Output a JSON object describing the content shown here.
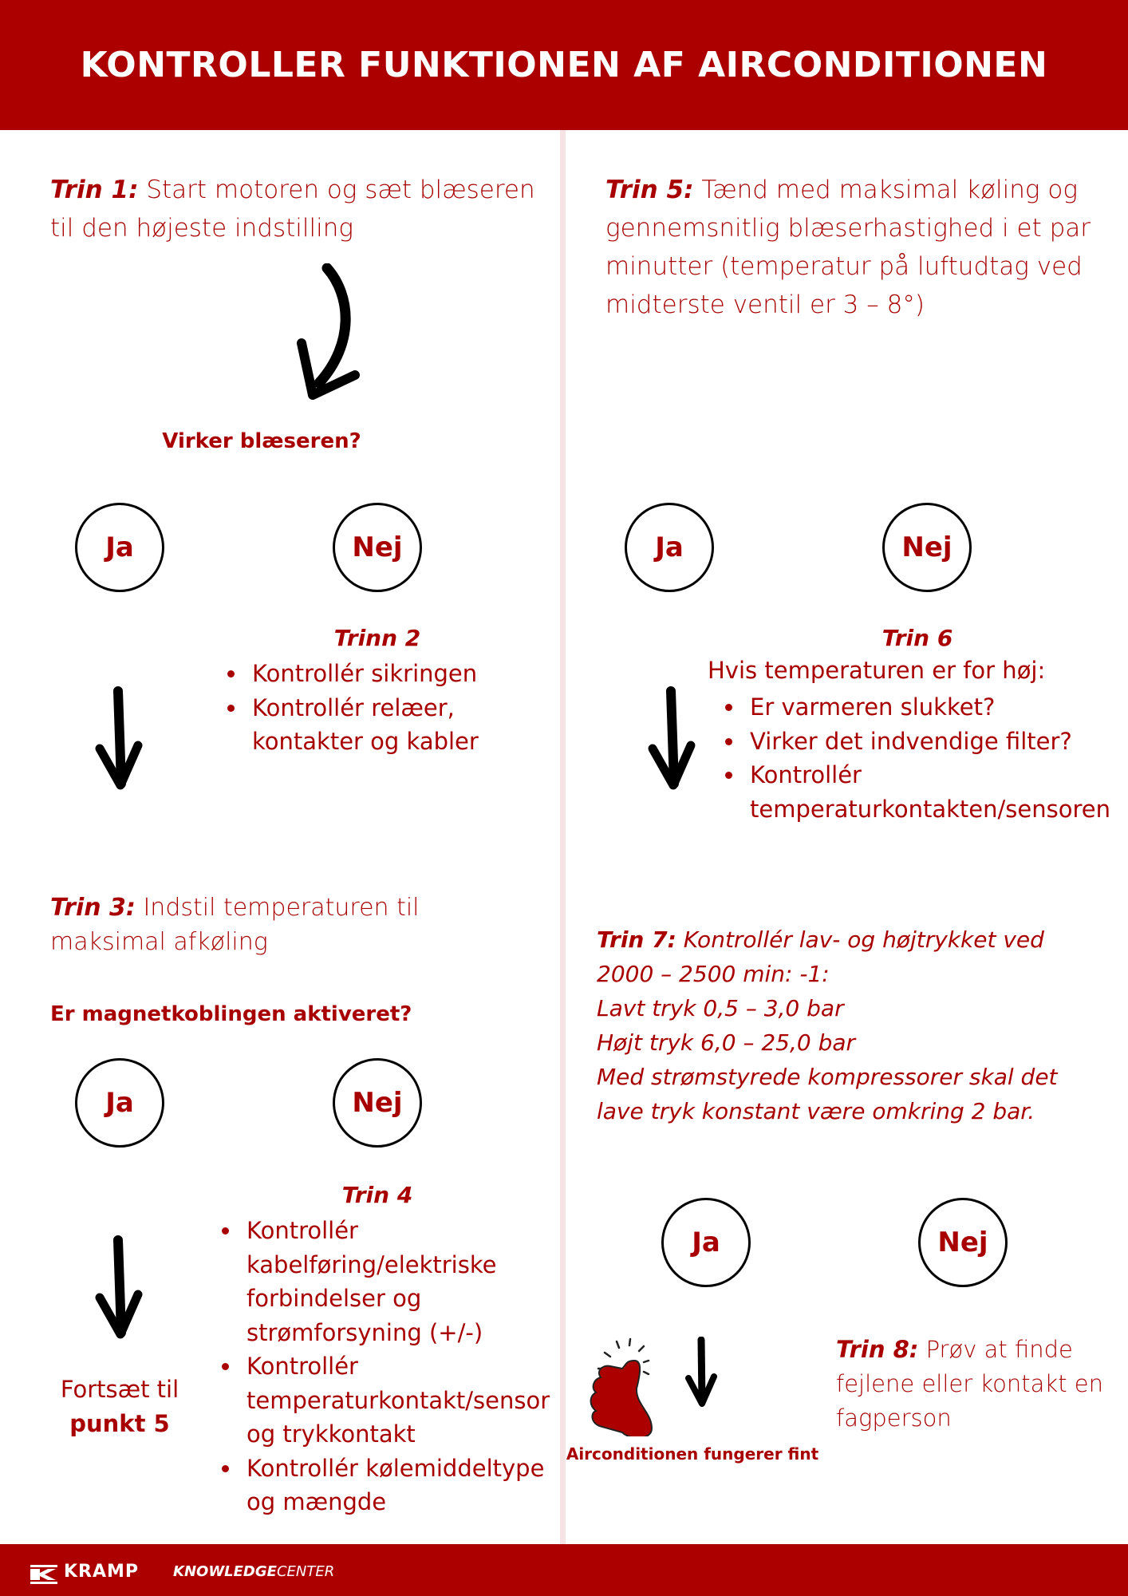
{
  "header": {
    "title": "KONTROLLER FUNKTIONEN AF AIRCONDITIONEN"
  },
  "colors": {
    "brand": "#ac0000",
    "text": "#a80000",
    "divider": "#f6e3e3"
  },
  "left": {
    "step1": {
      "label": "Trin 1:",
      "text": " Start motoren og sæt blæseren til den højeste indstilling"
    },
    "q1": "Virker blæseren?",
    "yes1": "Ja",
    "no1": "Nej",
    "step2": {
      "title": "Trinn 2",
      "items": [
        "Kontrollér sikringen",
        "Kontrollér relæer, kontakter og kabler"
      ]
    },
    "step3": {
      "label": "Trin 3:",
      "text": " Indstil temperaturen til maksimal afkøling"
    },
    "q2": "Er magnetkoblingen aktiveret?",
    "yes2": "Ja",
    "no2": "Nej",
    "step4": {
      "title": "Trin 4",
      "items": [
        "Kontrollér kabelføring/elektriske forbindelser og strømforsyning (+/-)",
        "Kontrollér temperaturkontakt/sensor og trykkontakt",
        "Kontrollér kølemiddeltype og mængde"
      ]
    },
    "continue": {
      "text": "Fortsæt til",
      "bold": "punkt 5"
    }
  },
  "right": {
    "step5": {
      "label": "Trin 5:",
      "text": " Tænd med maksimal køling og gennemsnitlig blæserhastighed i et par minutter (temperatur på luftudtag ved midterste ventil er 3 – 8°)"
    },
    "yes1": "Ja",
    "no1": "Nej",
    "step6": {
      "title": "Trin 6",
      "intro": "Hvis temperaturen er for høj:",
      "items": [
        "Er varmeren slukket?",
        "Virker det indvendige filter?",
        "Kontrollér temperaturkontakten/sensoren"
      ]
    },
    "step7": {
      "label": "Trin 7:",
      "lines": [
        "  Kontrollér lav- og højtrykket ved 2000 – 2500 min: -1:",
        "Lavt tryk 0,5 – 3,0 bar",
        "Højt tryk 6,0 – 25,0 bar",
        "Med strømstyrede kompressorer skal det lave tryk konstant være omkring 2 bar."
      ]
    },
    "yes2": "Ja",
    "no2": "Nej",
    "ok": "Airconditionen fungerer fint",
    "step8": {
      "label": "Trin 8:",
      "text": " Prøv at finde fejlene eller kontakt en fagperson"
    }
  },
  "footer": {
    "brand": "KRAMP",
    "product_bold": "KNOWLEDGE",
    "product_light": "CENTER"
  }
}
